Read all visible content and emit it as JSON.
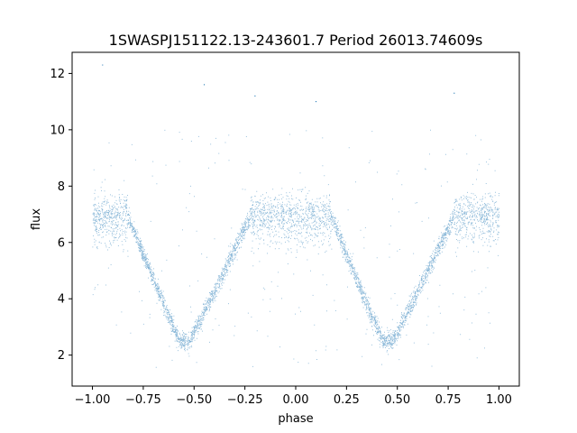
{
  "chart_data": {
    "type": "scatter",
    "title": "1SWASPJ151122.13-243601.7 Period 26013.74609s",
    "xlabel": "phase",
    "ylabel": "flux",
    "xlim": [
      -1.1,
      1.1
    ],
    "ylim": [
      0.9,
      12.75
    ],
    "x_ticks": [
      -1.0,
      -0.75,
      -0.5,
      -0.25,
      0.0,
      0.25,
      0.5,
      0.75,
      1.0
    ],
    "x_tick_labels": [
      "−1.00",
      "−0.75",
      "−0.50",
      "−0.25",
      "0.00",
      "0.25",
      "0.50",
      "0.75",
      "1.00"
    ],
    "y_ticks": [
      2,
      4,
      6,
      8,
      10,
      12
    ],
    "y_tick_labels": [
      "2",
      "4",
      "6",
      "8",
      "10",
      "12"
    ],
    "grid": false,
    "legend": "none",
    "marker_color": "#1f77b4",
    "series": [
      {
        "description_points": "phase-folded light curve: baseline flux ~7.0 with eclipse dips",
        "baseline_flux": 7.0,
        "baseline_scatter": 0.35,
        "phase_range": [
          -1.0,
          1.0
        ],
        "eclipses": [
          {
            "center_phase": -0.55,
            "min_flux": 2.5,
            "ingress_phase": -0.83,
            "egress_phase": -0.22
          },
          {
            "center_phase": 0.45,
            "min_flux": 2.5,
            "ingress_phase": 0.17,
            "egress_phase": 0.78
          }
        ],
        "outlier_flux_range": [
          1.5,
          12.3
        ]
      }
    ]
  }
}
